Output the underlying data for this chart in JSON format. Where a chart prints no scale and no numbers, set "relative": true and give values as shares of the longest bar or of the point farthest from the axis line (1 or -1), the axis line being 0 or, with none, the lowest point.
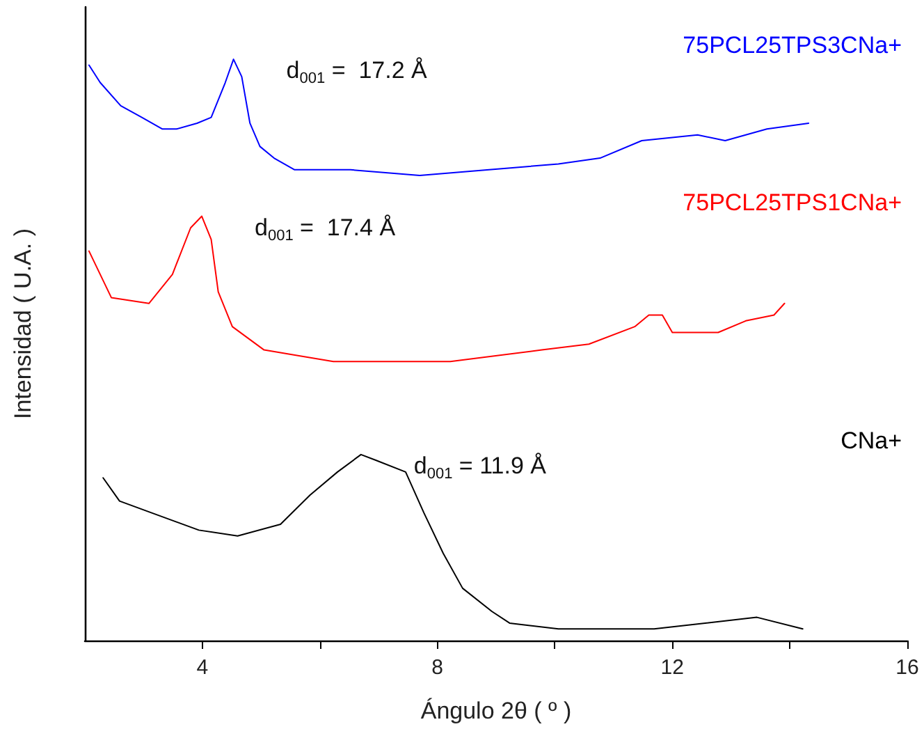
{
  "chart_data": {
    "type": "line",
    "relative": true,
    "xlabel": "Ángulo 2θ ( º )",
    "ylabel": "Intensidad ( U.A. )",
    "xlim": [
      2,
      16
    ],
    "xticks": [
      4,
      {
        "value": 6,
        "label": null
      },
      8,
      {
        "value": 10,
        "label": null
      },
      12,
      {
        "value": 14,
        "label": null
      },
      16
    ],
    "grid": false,
    "legend": false,
    "marker": "none",
    "line_style": "solid",
    "series": [
      {
        "name": "75PCL25TPS3CNa+",
        "color": "#0000ff",
        "x": [
          2.07,
          2.26,
          2.61,
          2.97,
          3.32,
          3.56,
          3.91,
          4.15,
          4.39,
          4.53,
          4.67,
          4.81,
          4.98,
          5.22,
          5.57,
          6.52,
          7.7,
          8.88,
          10.06,
          10.77,
          11.48,
          12.43,
          12.9,
          13.61,
          14.32
        ],
        "values": [
          0.99,
          0.96,
          0.92,
          0.9,
          0.88,
          0.88,
          0.89,
          0.9,
          0.96,
          1,
          0.97,
          0.89,
          0.85,
          0.83,
          0.81,
          0.81,
          0.8,
          0.81,
          0.82,
          0.83,
          0.86,
          0.87,
          0.86,
          0.88,
          0.89
        ]
      },
      {
        "name": "75PCL25TPS1CNa+",
        "color": "#ff0000",
        "x": [
          2.07,
          2.45,
          3.09,
          3.49,
          3.8,
          3.99,
          4.15,
          4.27,
          4.51,
          5.05,
          6.23,
          8.22,
          9.78,
          10.58,
          11.36,
          11.6,
          11.83,
          12.0,
          12.78,
          13.25,
          13.73,
          13.91
        ],
        "values": [
          0.67,
          0.59,
          0.58,
          0.63,
          0.71,
          0.73,
          0.69,
          0.6,
          0.54,
          0.5,
          0.48,
          0.48,
          0.5,
          0.51,
          0.54,
          0.56,
          0.56,
          0.53,
          0.53,
          0.55,
          0.56,
          0.58
        ]
      },
      {
        "name": "CNa+",
        "color": "#000000",
        "x": [
          2.31,
          2.59,
          3.13,
          3.94,
          4.6,
          5.33,
          5.83,
          6.3,
          6.7,
          6.96,
          7.46,
          7.77,
          8.1,
          8.43,
          8.93,
          9.23,
          10.06,
          11.69,
          13.44,
          14.22
        ],
        "values": [
          0.28,
          0.24,
          0.22,
          0.19,
          0.18,
          0.2,
          0.25,
          0.29,
          0.32,
          0.31,
          0.29,
          0.22,
          0.15,
          0.09,
          0.05,
          0.03,
          0.02,
          0.02,
          0.04,
          0.02
        ]
      }
    ],
    "annotations": [
      "d$_{001}$ =  17.2 Å",
      "d$_{001}$ =  17.4 Å",
      "d$_{001}$ = 11.9 Å"
    ]
  }
}
